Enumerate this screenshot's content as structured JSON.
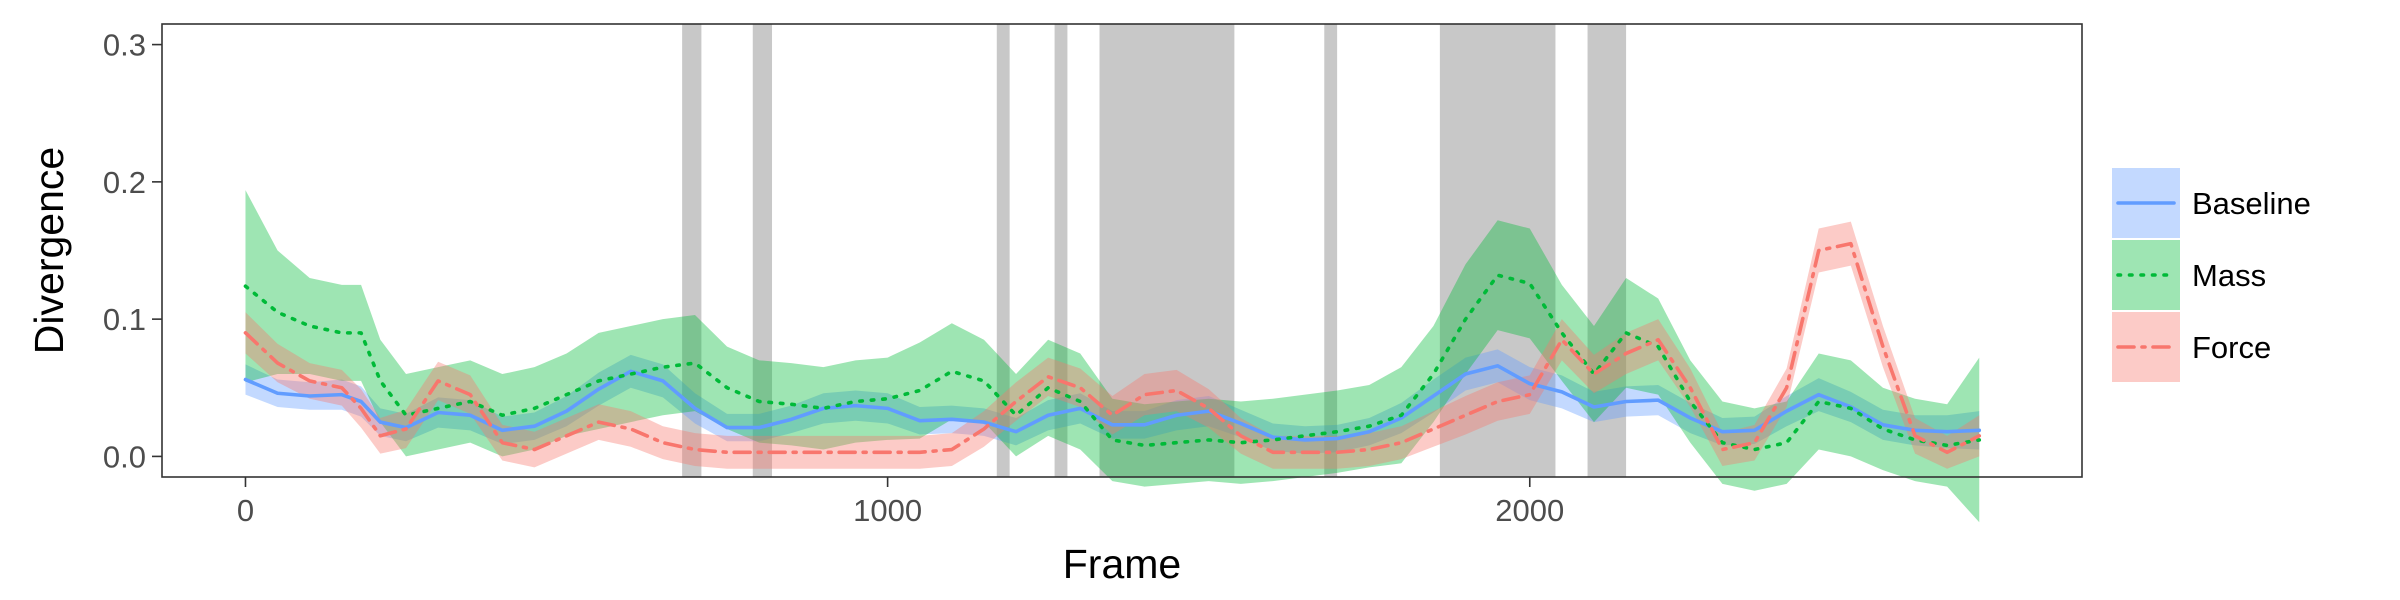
{
  "chart_data": {
    "type": "line",
    "xlabel": "Frame",
    "ylabel": "Divergence",
    "xlim": [
      -130,
      2860
    ],
    "ylim": [
      -0.015,
      0.315
    ],
    "xticks": [
      0,
      1000,
      2000
    ],
    "yticks": [
      0.0,
      0.1,
      0.2,
      0.3
    ],
    "ytick_labels": [
      "0.0",
      "0.1",
      "0.2",
      "0.3"
    ],
    "grid": false,
    "legend_position": "right",
    "shaded_intervals": [
      [
        680,
        710
      ],
      [
        790,
        820
      ],
      [
        1170,
        1190
      ],
      [
        1260,
        1280
      ],
      [
        1330,
        1540
      ],
      [
        1680,
        1700
      ],
      [
        1860,
        2040
      ],
      [
        2090,
        2150
      ]
    ],
    "shade_color": "#c8c8c8",
    "series": [
      {
        "name": "Baseline",
        "color": "#619CFF",
        "line_style": "solid",
        "x": [
          0,
          50,
          100,
          150,
          180,
          210,
          250,
          300,
          350,
          400,
          450,
          500,
          550,
          600,
          650,
          700,
          750,
          800,
          850,
          900,
          950,
          1000,
          1050,
          1100,
          1150,
          1200,
          1250,
          1300,
          1350,
          1400,
          1450,
          1500,
          1550,
          1600,
          1650,
          1700,
          1750,
          1800,
          1850,
          1900,
          1950,
          2000,
          2050,
          2100,
          2150,
          2200,
          2250,
          2300,
          2350,
          2400,
          2450,
          2500,
          2550,
          2600,
          2650,
          2700
        ],
        "y": [
          0.056,
          0.046,
          0.044,
          0.045,
          0.04,
          0.025,
          0.021,
          0.032,
          0.03,
          0.019,
          0.022,
          0.033,
          0.049,
          0.062,
          0.055,
          0.035,
          0.021,
          0.021,
          0.027,
          0.035,
          0.037,
          0.035,
          0.026,
          0.027,
          0.025,
          0.018,
          0.03,
          0.035,
          0.023,
          0.023,
          0.03,
          0.033,
          0.024,
          0.014,
          0.012,
          0.013,
          0.018,
          0.028,
          0.044,
          0.06,
          0.066,
          0.053,
          0.047,
          0.036,
          0.04,
          0.041,
          0.028,
          0.018,
          0.019,
          0.033,
          0.045,
          0.036,
          0.023,
          0.019,
          0.018,
          0.019
        ],
        "band": [
          0.011,
          0.01,
          0.01,
          0.011,
          0.011,
          0.01,
          0.01,
          0.011,
          0.011,
          0.01,
          0.01,
          0.011,
          0.012,
          0.012,
          0.012,
          0.011,
          0.01,
          0.01,
          0.01,
          0.011,
          0.011,
          0.011,
          0.01,
          0.01,
          0.01,
          0.01,
          0.011,
          0.011,
          0.01,
          0.01,
          0.011,
          0.011,
          0.01,
          0.01,
          0.01,
          0.01,
          0.01,
          0.011,
          0.012,
          0.012,
          0.012,
          0.012,
          0.012,
          0.011,
          0.011,
          0.011,
          0.011,
          0.01,
          0.01,
          0.011,
          0.012,
          0.011,
          0.011,
          0.011,
          0.012,
          0.014
        ]
      },
      {
        "name": "Mass",
        "color": "#00BA38",
        "line_style": "dotted",
        "x": [
          0,
          50,
          100,
          150,
          180,
          210,
          250,
          300,
          350,
          400,
          450,
          500,
          550,
          600,
          650,
          700,
          750,
          800,
          850,
          900,
          950,
          1000,
          1050,
          1100,
          1150,
          1200,
          1250,
          1300,
          1350,
          1400,
          1450,
          1500,
          1550,
          1600,
          1650,
          1700,
          1750,
          1800,
          1850,
          1900,
          1950,
          2000,
          2050,
          2100,
          2150,
          2200,
          2250,
          2300,
          2350,
          2400,
          2450,
          2500,
          2550,
          2600,
          2650,
          2700
        ],
        "y": [
          0.124,
          0.105,
          0.095,
          0.09,
          0.09,
          0.055,
          0.03,
          0.035,
          0.04,
          0.03,
          0.035,
          0.045,
          0.055,
          0.06,
          0.065,
          0.068,
          0.05,
          0.04,
          0.038,
          0.035,
          0.04,
          0.042,
          0.048,
          0.062,
          0.055,
          0.03,
          0.05,
          0.04,
          0.012,
          0.008,
          0.01,
          0.012,
          0.01,
          0.012,
          0.015,
          0.018,
          0.022,
          0.03,
          0.06,
          0.1,
          0.132,
          0.126,
          0.09,
          0.06,
          0.09,
          0.08,
          0.04,
          0.01,
          0.005,
          0.01,
          0.04,
          0.035,
          0.02,
          0.012,
          0.008,
          0.012
        ],
        "band": [
          0.07,
          0.045,
          0.035,
          0.035,
          0.035,
          0.03,
          0.03,
          0.03,
          0.03,
          0.03,
          0.03,
          0.03,
          0.035,
          0.035,
          0.035,
          0.035,
          0.03,
          0.03,
          0.03,
          0.03,
          0.03,
          0.03,
          0.035,
          0.035,
          0.03,
          0.03,
          0.035,
          0.035,
          0.03,
          0.03,
          0.03,
          0.03,
          0.03,
          0.03,
          0.03,
          0.03,
          0.03,
          0.035,
          0.035,
          0.04,
          0.04,
          0.04,
          0.035,
          0.035,
          0.04,
          0.035,
          0.03,
          0.03,
          0.03,
          0.03,
          0.035,
          0.035,
          0.03,
          0.03,
          0.03,
          0.06
        ]
      },
      {
        "name": "Force",
        "color": "#F8766D",
        "line_style": "dashdot",
        "x": [
          0,
          50,
          100,
          150,
          180,
          210,
          250,
          300,
          350,
          400,
          450,
          500,
          550,
          600,
          650,
          700,
          750,
          800,
          850,
          900,
          950,
          1000,
          1050,
          1100,
          1150,
          1200,
          1250,
          1300,
          1350,
          1400,
          1450,
          1500,
          1550,
          1600,
          1650,
          1700,
          1750,
          1800,
          1850,
          1900,
          1950,
          2000,
          2050,
          2100,
          2150,
          2200,
          2250,
          2300,
          2350,
          2400,
          2450,
          2500,
          2550,
          2600,
          2650,
          2700
        ],
        "y": [
          0.09,
          0.068,
          0.055,
          0.05,
          0.035,
          0.015,
          0.02,
          0.055,
          0.045,
          0.01,
          0.005,
          0.015,
          0.025,
          0.02,
          0.01,
          0.005,
          0.003,
          0.003,
          0.003,
          0.003,
          0.003,
          0.003,
          0.003,
          0.005,
          0.02,
          0.04,
          0.058,
          0.05,
          0.03,
          0.045,
          0.048,
          0.035,
          0.015,
          0.003,
          0.003,
          0.003,
          0.005,
          0.01,
          0.02,
          0.03,
          0.04,
          0.045,
          0.085,
          0.06,
          0.075,
          0.085,
          0.05,
          0.005,
          0.01,
          0.05,
          0.15,
          0.155,
          0.08,
          0.015,
          0.003,
          0.015
        ],
        "band": [
          0.015,
          0.014,
          0.013,
          0.013,
          0.014,
          0.013,
          0.014,
          0.014,
          0.014,
          0.013,
          0.013,
          0.013,
          0.013,
          0.013,
          0.012,
          0.012,
          0.012,
          0.012,
          0.012,
          0.012,
          0.012,
          0.012,
          0.012,
          0.012,
          0.013,
          0.014,
          0.014,
          0.014,
          0.014,
          0.015,
          0.015,
          0.014,
          0.013,
          0.012,
          0.012,
          0.012,
          0.012,
          0.012,
          0.013,
          0.014,
          0.014,
          0.014,
          0.015,
          0.014,
          0.015,
          0.015,
          0.014,
          0.012,
          0.013,
          0.014,
          0.016,
          0.016,
          0.015,
          0.013,
          0.012,
          0.015
        ]
      }
    ]
  }
}
